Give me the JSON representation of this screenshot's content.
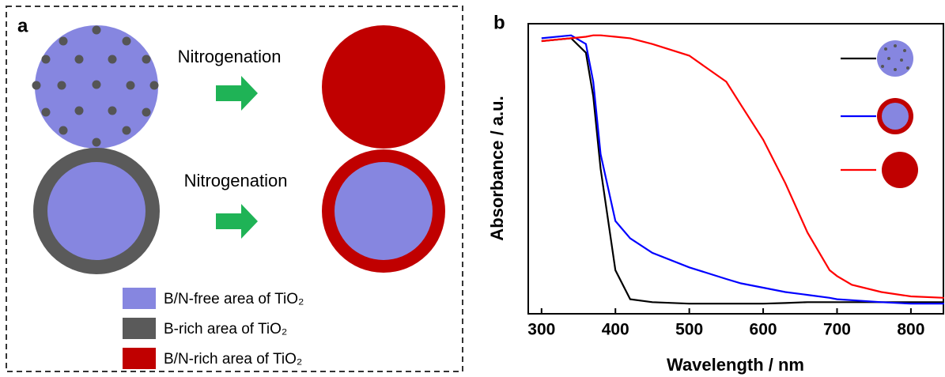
{
  "panel_a": {
    "label": "a",
    "steps": [
      "Nitrogenation",
      "Nitrogenation"
    ],
    "legend": [
      "B/N-free area of TiO₂",
      "B-rich area of TiO₂",
      "B/N-rich area of TiO₂"
    ]
  },
  "chart_data": {
    "type": "line",
    "label": "b",
    "x_label": "Wavelength / nm",
    "y_label": "Absorbance / a.u.",
    "x": [
      300,
      340,
      360,
      370,
      380,
      400,
      420,
      450,
      500,
      550,
      570,
      600,
      630,
      660,
      690,
      700,
      720,
      760,
      800,
      845
    ],
    "series": [
      {
        "color": "#000000",
        "values": [
          0.94,
          0.95,
          0.9,
          0.75,
          0.5,
          0.15,
          0.05,
          0.04,
          0.035,
          0.035,
          0.035,
          0.035,
          0.037,
          0.04,
          0.04,
          0.04,
          0.04,
          0.04,
          0.04,
          0.04
        ]
      },
      {
        "color": "#0000ff",
        "values": [
          0.95,
          0.96,
          0.93,
          0.8,
          0.55,
          0.32,
          0.26,
          0.21,
          0.16,
          0.12,
          0.105,
          0.09,
          0.075,
          0.065,
          0.055,
          0.05,
          0.047,
          0.04,
          0.035,
          0.035
        ]
      },
      {
        "color": "#ff0000",
        "values": [
          0.94,
          0.95,
          0.955,
          0.96,
          0.96,
          0.955,
          0.95,
          0.93,
          0.89,
          0.8,
          0.72,
          0.6,
          0.45,
          0.28,
          0.15,
          0.13,
          0.1,
          0.075,
          0.06,
          0.055
        ]
      }
    ],
    "xlim": [
      282,
      844
    ],
    "xticks": [
      300,
      400,
      500,
      600,
      700,
      800
    ],
    "ylim": [
      0,
      1
    ]
  }
}
